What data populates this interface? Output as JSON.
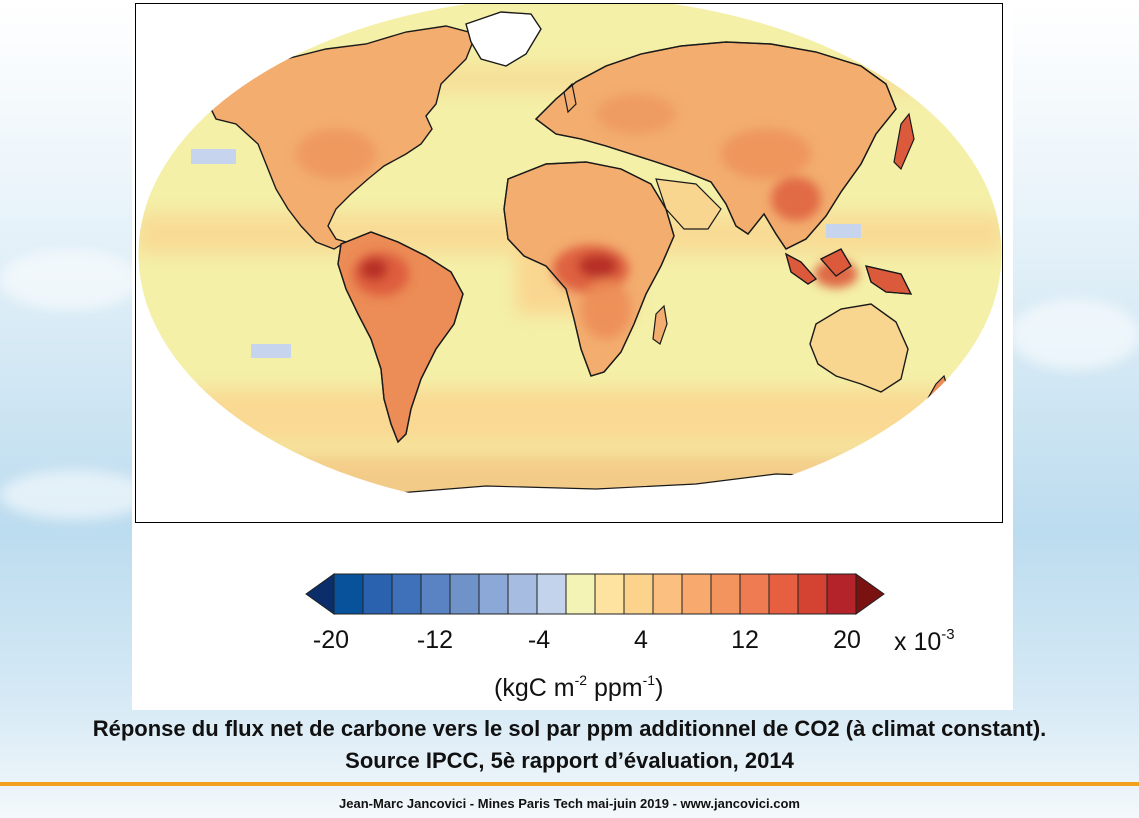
{
  "map": {
    "colors": {
      "background_flux": "#f4f0a8",
      "flux_light": "#f9d690",
      "flux_mid": "#f3ad6f",
      "flux_orange": "#ec8c56",
      "flux_strong": "#dc5a3c",
      "flux_max": "#b42a22",
      "negative_light": "#c6d4ee",
      "no_data": "#ffffff"
    }
  },
  "colorbar": {
    "ticks": [
      "-20",
      "-12",
      "-4",
      "4",
      "12",
      "20"
    ],
    "scale_prefix": "x 10",
    "scale_exp": "-3",
    "units_prefix": "(kgC m",
    "units_exp1": "-2",
    "units_mid": " ppm",
    "units_exp2": "-1",
    "units_suffix": ")",
    "colors": [
      "#0b2d69",
      "#08529c",
      "#2a62b0",
      "#3f70ba",
      "#5a83c3",
      "#6f92c9",
      "#8ba8d6",
      "#a6bde1",
      "#c4d3ec",
      "#f4f3b6",
      "#fde2a0",
      "#fcd38d",
      "#fbc080",
      "#f8aa6e",
      "#f3945f",
      "#ee7b51",
      "#e65f41",
      "#d44232",
      "#b4222a",
      "#7a1212"
    ]
  },
  "caption": {
    "line1": "Réponse du flux net de carbone vers le sol par ppm additionnel de CO2 (à climat constant).",
    "line2": "Source IPCC, 5è rapport d’évaluation, 2014"
  },
  "footer": {
    "text": "Jean-Marc Jancovici - Mines Paris Tech mai-juin 2019 - www.jancovici.com"
  }
}
